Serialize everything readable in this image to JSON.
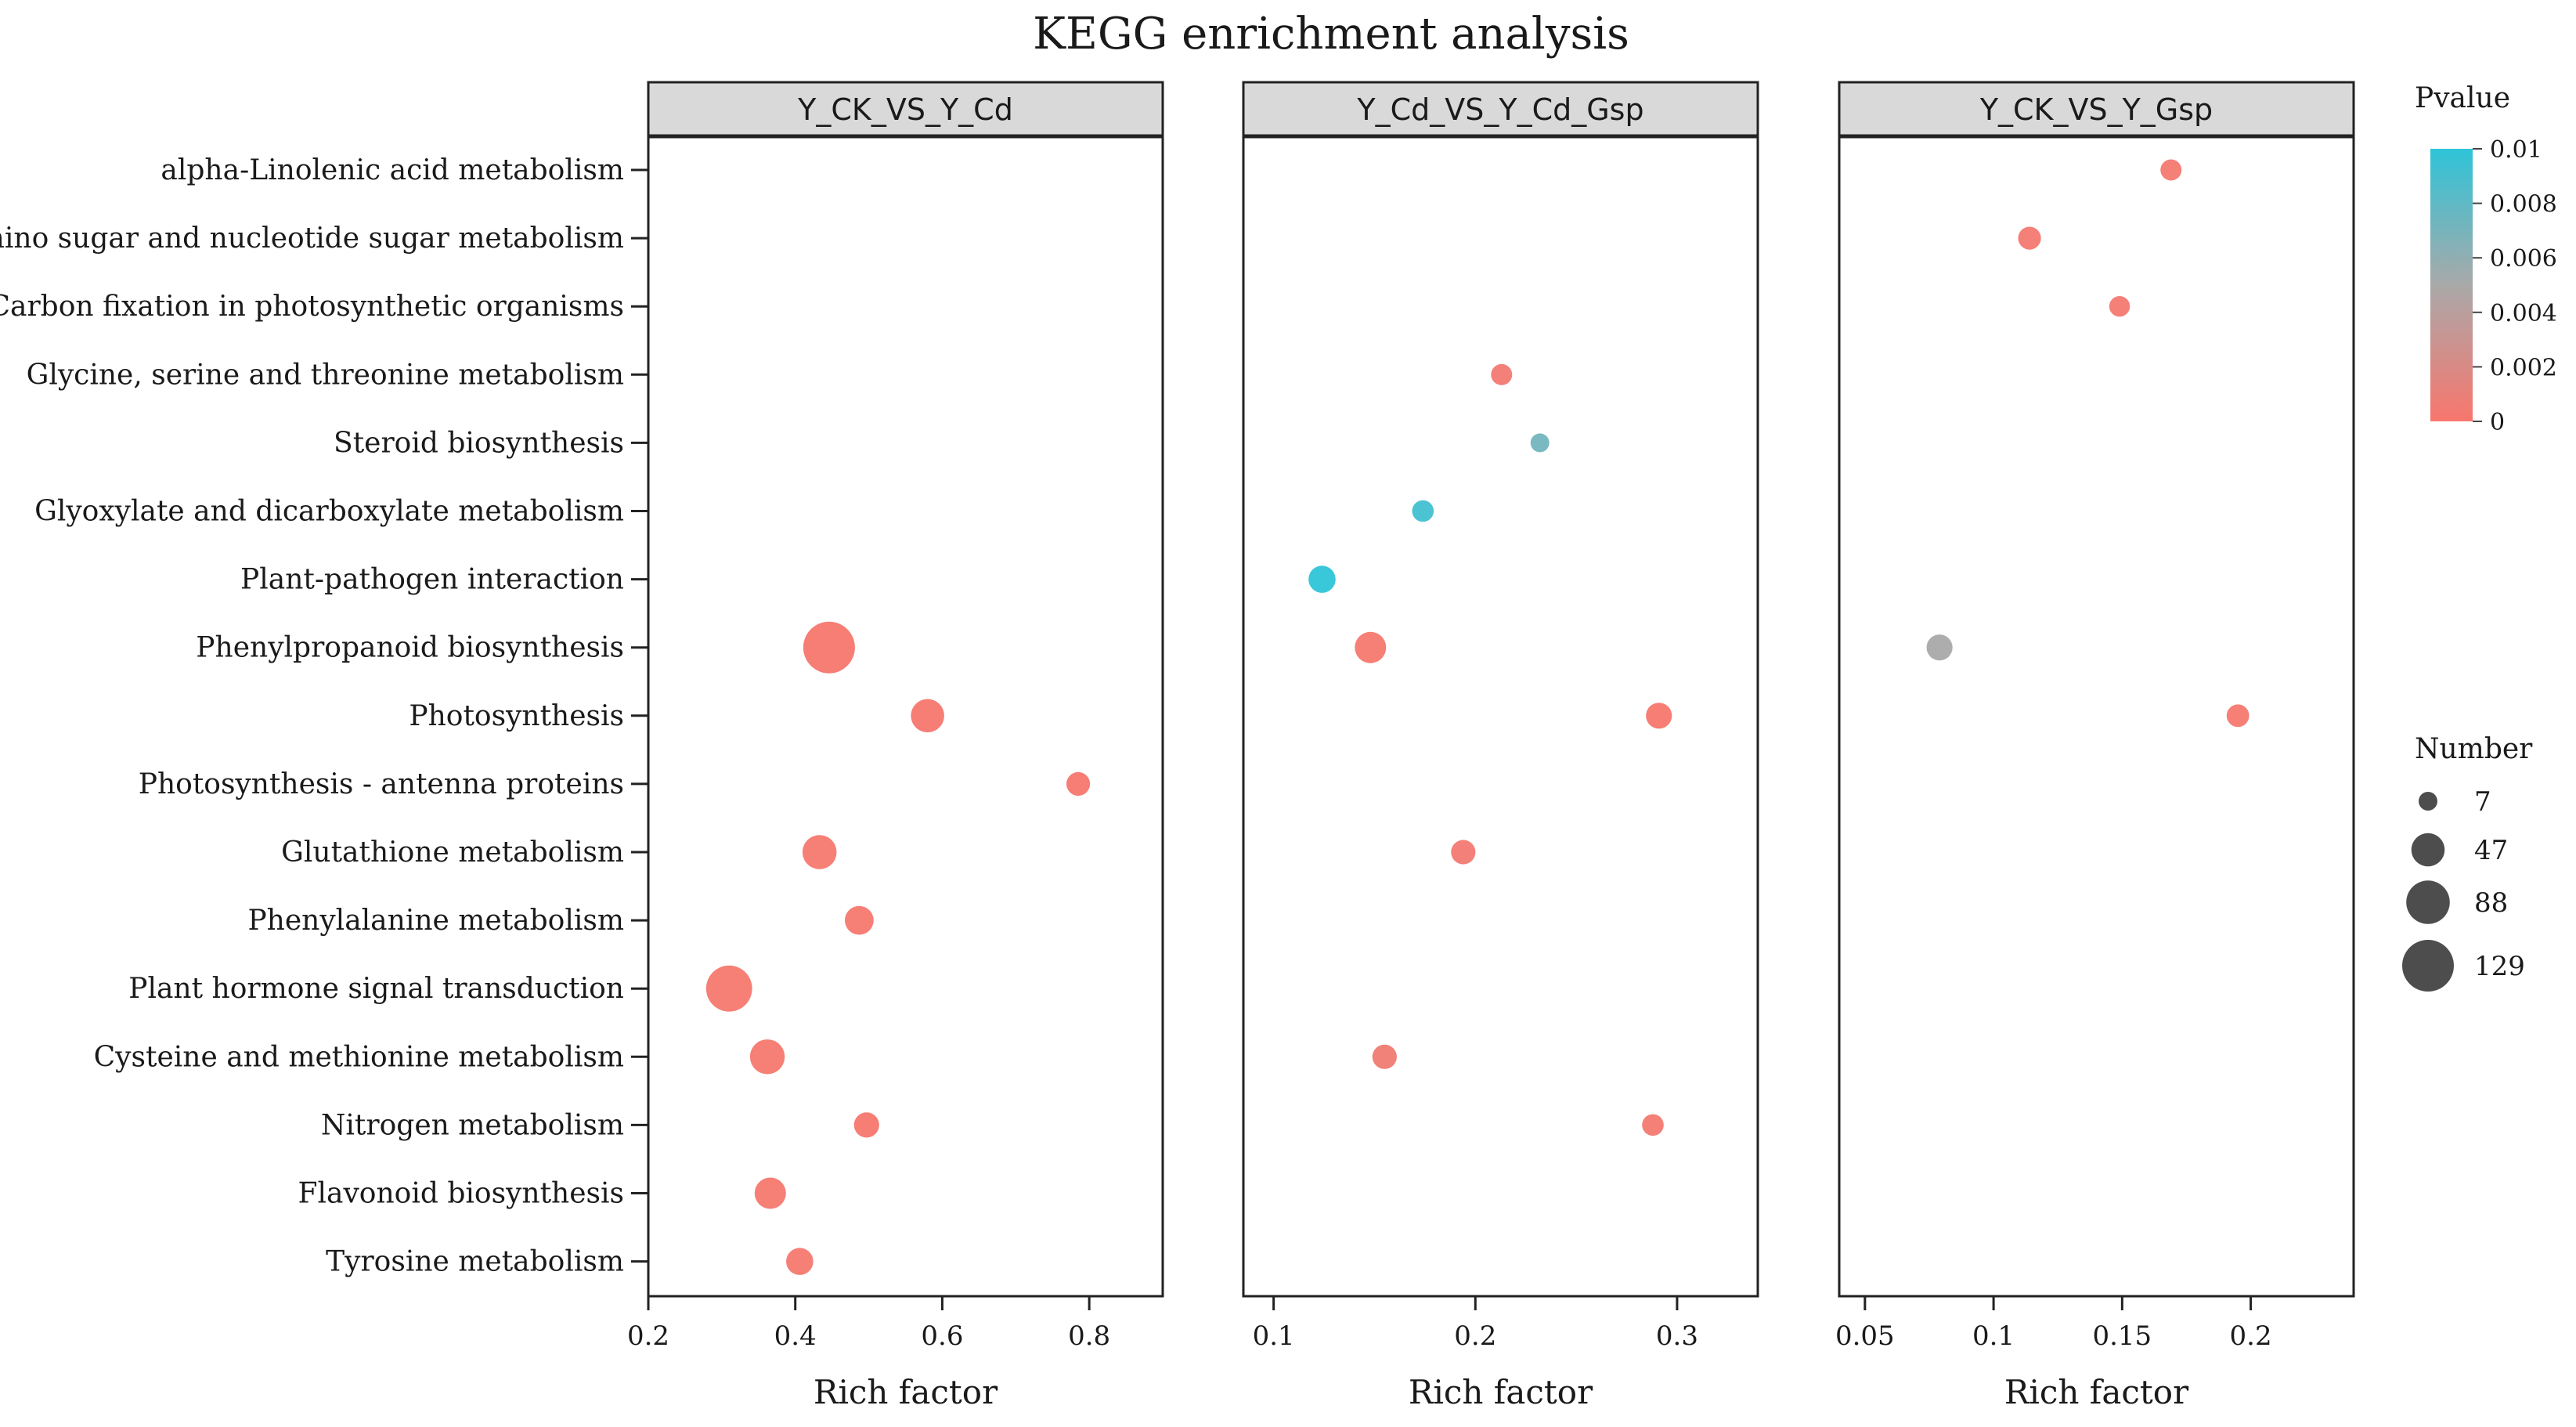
{
  "chart_data": {
    "type": "scatter",
    "title": "KEGG enrichment analysis",
    "xlabel": "Rich factor",
    "ylabel": "",
    "categories": [
      "alpha-Linolenic acid metabolism",
      "Amino sugar and nucleotide sugar metabolism",
      "Carbon fixation in photosynthetic organisms",
      "Glycine, serine and threonine metabolism",
      "Steroid biosynthesis",
      "Glyoxylate and dicarboxylate metabolism",
      "Plant-pathogen interaction",
      "Phenylpropanoid biosynthesis",
      "Photosynthesis",
      "Photosynthesis - antenna proteins",
      "Glutathione metabolism",
      "Phenylalanine metabolism",
      "Plant hormone signal transduction",
      "Cysteine and methionine metabolism",
      "Nitrogen metabolism",
      "Flavonoid biosynthesis",
      "Tyrosine metabolism"
    ],
    "panels": [
      {
        "name": "Y_CK_VS_Y_Cd",
        "xlim": [
          0.2,
          0.9
        ],
        "xticks": [
          0.2,
          0.4,
          0.6,
          0.8
        ],
        "xtick_labels": [
          "0.2",
          "0.4",
          "0.6",
          "0.8"
        ],
        "points": [
          {
            "pathway": "Phenylpropanoid biosynthesis",
            "x": 0.446,
            "number": 129,
            "pvalue": 0.0001
          },
          {
            "pathway": "Photosynthesis",
            "x": 0.58,
            "number": 47,
            "pvalue": 0.0001
          },
          {
            "pathway": "Photosynthesis - antenna proteins",
            "x": 0.785,
            "number": 18,
            "pvalue": 0.0001
          },
          {
            "pathway": "Glutathione metabolism",
            "x": 0.433,
            "number": 50,
            "pvalue": 0.0002
          },
          {
            "pathway": "Phenylalanine metabolism",
            "x": 0.487,
            "number": 32,
            "pvalue": 0.0002
          },
          {
            "pathway": "Plant hormone signal transduction",
            "x": 0.31,
            "number": 100,
            "pvalue": 0.0002
          },
          {
            "pathway": "Cysteine and methionine metabolism",
            "x": 0.362,
            "number": 52,
            "pvalue": 0.0002
          },
          {
            "pathway": "Nitrogen metabolism",
            "x": 0.497,
            "number": 22,
            "pvalue": 0.0001
          },
          {
            "pathway": "Flavonoid biosynthesis",
            "x": 0.366,
            "number": 40,
            "pvalue": 0.0002
          },
          {
            "pathway": "Tyrosine metabolism",
            "x": 0.406,
            "number": 27,
            "pvalue": 0.0002
          }
        ]
      },
      {
        "name": "Y_Cd_VS_Y_Cd_Gsp",
        "xlim": [
          0.085,
          0.34
        ],
        "xticks": [
          0.1,
          0.2,
          0.3
        ],
        "xtick_labels": [
          "0.1",
          "0.2",
          "0.3"
        ],
        "points": [
          {
            "pathway": "Glycine, serine and threonine metabolism",
            "x": 0.213,
            "number": 12,
            "pvalue": 0.0004
          },
          {
            "pathway": "Steroid biosynthesis",
            "x": 0.232,
            "number": 7,
            "pvalue": 0.0072
          },
          {
            "pathway": "Glyoxylate and dicarboxylate metabolism",
            "x": 0.174,
            "number": 13,
            "pvalue": 0.0092
          },
          {
            "pathway": "Plant-pathogen interaction",
            "x": 0.124,
            "number": 27,
            "pvalue": 0.01
          },
          {
            "pathway": "Phenylpropanoid biosynthesis",
            "x": 0.148,
            "number": 40,
            "pvalue": 0.0002
          },
          {
            "pathway": "Photosynthesis",
            "x": 0.291,
            "number": 24,
            "pvalue": 0.0001
          },
          {
            "pathway": "Glutathione metabolism",
            "x": 0.194,
            "number": 20,
            "pvalue": 0.0004
          },
          {
            "pathway": "Cysteine and methionine metabolism",
            "x": 0.155,
            "number": 20,
            "pvalue": 0.0005
          },
          {
            "pathway": "Nitrogen metabolism",
            "x": 0.288,
            "number": 13,
            "pvalue": 0.0003
          }
        ]
      },
      {
        "name": "Y_CK_VS_Y_Gsp",
        "xlim": [
          0.04,
          0.24
        ],
        "xticks": [
          0.05,
          0.1,
          0.15,
          0.2
        ],
        "xtick_labels": [
          "0.05",
          "0.1",
          "0.15",
          "0.2"
        ],
        "points": [
          {
            "pathway": "alpha-Linolenic acid metabolism",
            "x": 0.169,
            "number": 12,
            "pvalue": 0.0003
          },
          {
            "pathway": "Amino sugar and nucleotide sugar metabolism",
            "x": 0.114,
            "number": 16,
            "pvalue": 0.0003
          },
          {
            "pathway": "Carbon fixation in photosynthetic organisms",
            "x": 0.149,
            "number": 11,
            "pvalue": 0.0003
          },
          {
            "pathway": "Phenylpropanoid biosynthesis",
            "x": 0.079,
            "number": 24,
            "pvalue": 0.005
          },
          {
            "pathway": "Photosynthesis",
            "x": 0.195,
            "number": 15,
            "pvalue": 0.0002
          }
        ]
      }
    ],
    "color_legend": {
      "title": "Pvalue",
      "min": 0,
      "max": 0.01,
      "low_color": "#f8766d",
      "mid_color": "#a9a9a9",
      "high_color": "#2ec4d8",
      "ticks": [
        0.01,
        0.008,
        0.006,
        0.004,
        0.002,
        0
      ],
      "tick_labels": [
        "0.01",
        "0.008",
        "0.006",
        "0.004",
        "0.002",
        "0"
      ]
    },
    "size_legend": {
      "title": "Number",
      "values": [
        7,
        47,
        88,
        129
      ],
      "labels": [
        "7",
        "47",
        "88",
        "129"
      ],
      "color": "#4d4d4d"
    }
  }
}
